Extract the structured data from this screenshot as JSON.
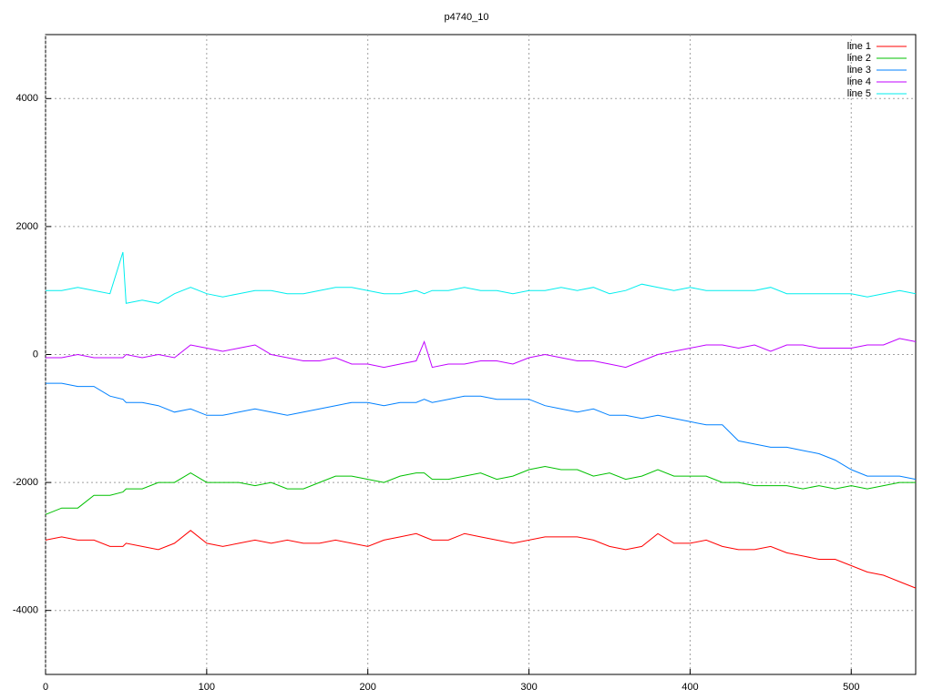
{
  "chart_data": {
    "type": "line",
    "title": "p4740_10",
    "x": [
      0,
      10,
      20,
      30,
      40,
      48,
      50,
      60,
      70,
      80,
      90,
      100,
      110,
      120,
      130,
      140,
      150,
      160,
      170,
      180,
      190,
      200,
      210,
      220,
      230,
      235,
      240,
      250,
      260,
      270,
      280,
      290,
      300,
      310,
      320,
      330,
      340,
      350,
      360,
      370,
      380,
      390,
      400,
      410,
      420,
      430,
      440,
      450,
      460,
      470,
      480,
      490,
      500,
      510,
      520,
      530,
      540
    ],
    "series": [
      {
        "name": "line 1",
        "color": "#ff0000",
        "values": [
          -2900,
          -2850,
          -2900,
          -2900,
          -3000,
          -3000,
          -2950,
          -3000,
          -3050,
          -2950,
          -2750,
          -2950,
          -3000,
          -2950,
          -2900,
          -2950,
          -2900,
          -2950,
          -2950,
          -2900,
          -2950,
          -3000,
          -2900,
          -2850,
          -2800,
          -2850,
          -2900,
          -2900,
          -2800,
          -2850,
          -2900,
          -2950,
          -2900,
          -2850,
          -2850,
          -2850,
          -2900,
          -3000,
          -3050,
          -3000,
          -2800,
          -2950,
          -2950,
          -2900,
          -3000,
          -3050,
          -3050,
          -3000,
          -3100,
          -3150,
          -3200,
          -3200,
          -3300,
          -3400,
          -3450,
          -3550,
          -3650
        ]
      },
      {
        "name": "line 2",
        "color": "#00c000",
        "values": [
          -2500,
          -2400,
          -2400,
          -2200,
          -2200,
          -2150,
          -2100,
          -2100,
          -2000,
          -2000,
          -1850,
          -2000,
          -2000,
          -2000,
          -2050,
          -2000,
          -2100,
          -2100,
          -2000,
          -1900,
          -1900,
          -1950,
          -2000,
          -1900,
          -1850,
          -1850,
          -1950,
          -1950,
          -1900,
          -1850,
          -1950,
          -1900,
          -1800,
          -1750,
          -1800,
          -1800,
          -1900,
          -1850,
          -1950,
          -1900,
          -1800,
          -1900,
          -1900,
          -1900,
          -2000,
          -2000,
          -2050,
          -2050,
          -2050,
          -2100,
          -2050,
          -2100,
          -2050,
          -2100,
          -2050,
          -2000,
          -2000
        ]
      },
      {
        "name": "line 3",
        "color": "#0080ff",
        "values": [
          -450,
          -450,
          -500,
          -500,
          -650,
          -700,
          -750,
          -750,
          -800,
          -900,
          -850,
          -950,
          -950,
          -900,
          -850,
          -900,
          -950,
          -900,
          -850,
          -800,
          -750,
          -750,
          -800,
          -750,
          -750,
          -700,
          -750,
          -700,
          -650,
          -650,
          -700,
          -700,
          -700,
          -800,
          -850,
          -900,
          -850,
          -950,
          -950,
          -1000,
          -950,
          -1000,
          -1050,
          -1100,
          -1100,
          -1350,
          -1400,
          -1450,
          -1450,
          -1500,
          -1550,
          -1650,
          -1800,
          -1900,
          -1900,
          -1900,
          -1950
        ]
      },
      {
        "name": "line 4",
        "color": "#c000ff",
        "values": [
          -50,
          -50,
          0,
          -50,
          -50,
          -50,
          0,
          -50,
          0,
          -50,
          150,
          100,
          50,
          100,
          150,
          0,
          -50,
          -100,
          -100,
          -50,
          -150,
          -150,
          -200,
          -150,
          -100,
          200,
          -200,
          -150,
          -150,
          -100,
          -100,
          -150,
          -50,
          0,
          -50,
          -100,
          -100,
          -150,
          -200,
          -100,
          0,
          50,
          100,
          150,
          150,
          100,
          150,
          50,
          150,
          150,
          100,
          100,
          100,
          150,
          150,
          250,
          200
        ]
      },
      {
        "name": "line 5",
        "color": "#00eeee",
        "values": [
          1000,
          1000,
          1050,
          1000,
          950,
          1600,
          800,
          850,
          800,
          950,
          1050,
          950,
          900,
          950,
          1000,
          1000,
          950,
          950,
          1000,
          1050,
          1050,
          1000,
          950,
          950,
          1000,
          950,
          1000,
          1000,
          1050,
          1000,
          1000,
          950,
          1000,
          1000,
          1050,
          1000,
          1050,
          950,
          1000,
          1100,
          1050,
          1000,
          1050,
          1000,
          1000,
          1000,
          1000,
          1050,
          950,
          950,
          950,
          950,
          950,
          900,
          950,
          1000,
          950
        ]
      }
    ],
    "xlim": [
      0,
      540
    ],
    "xticks": [
      0,
      100,
      200,
      300,
      400,
      500
    ],
    "ylim": [
      -5000,
      5000
    ],
    "yticks": [
      -4000,
      -2000,
      0,
      2000,
      4000
    ],
    "grid": true,
    "legend": "top-right"
  }
}
